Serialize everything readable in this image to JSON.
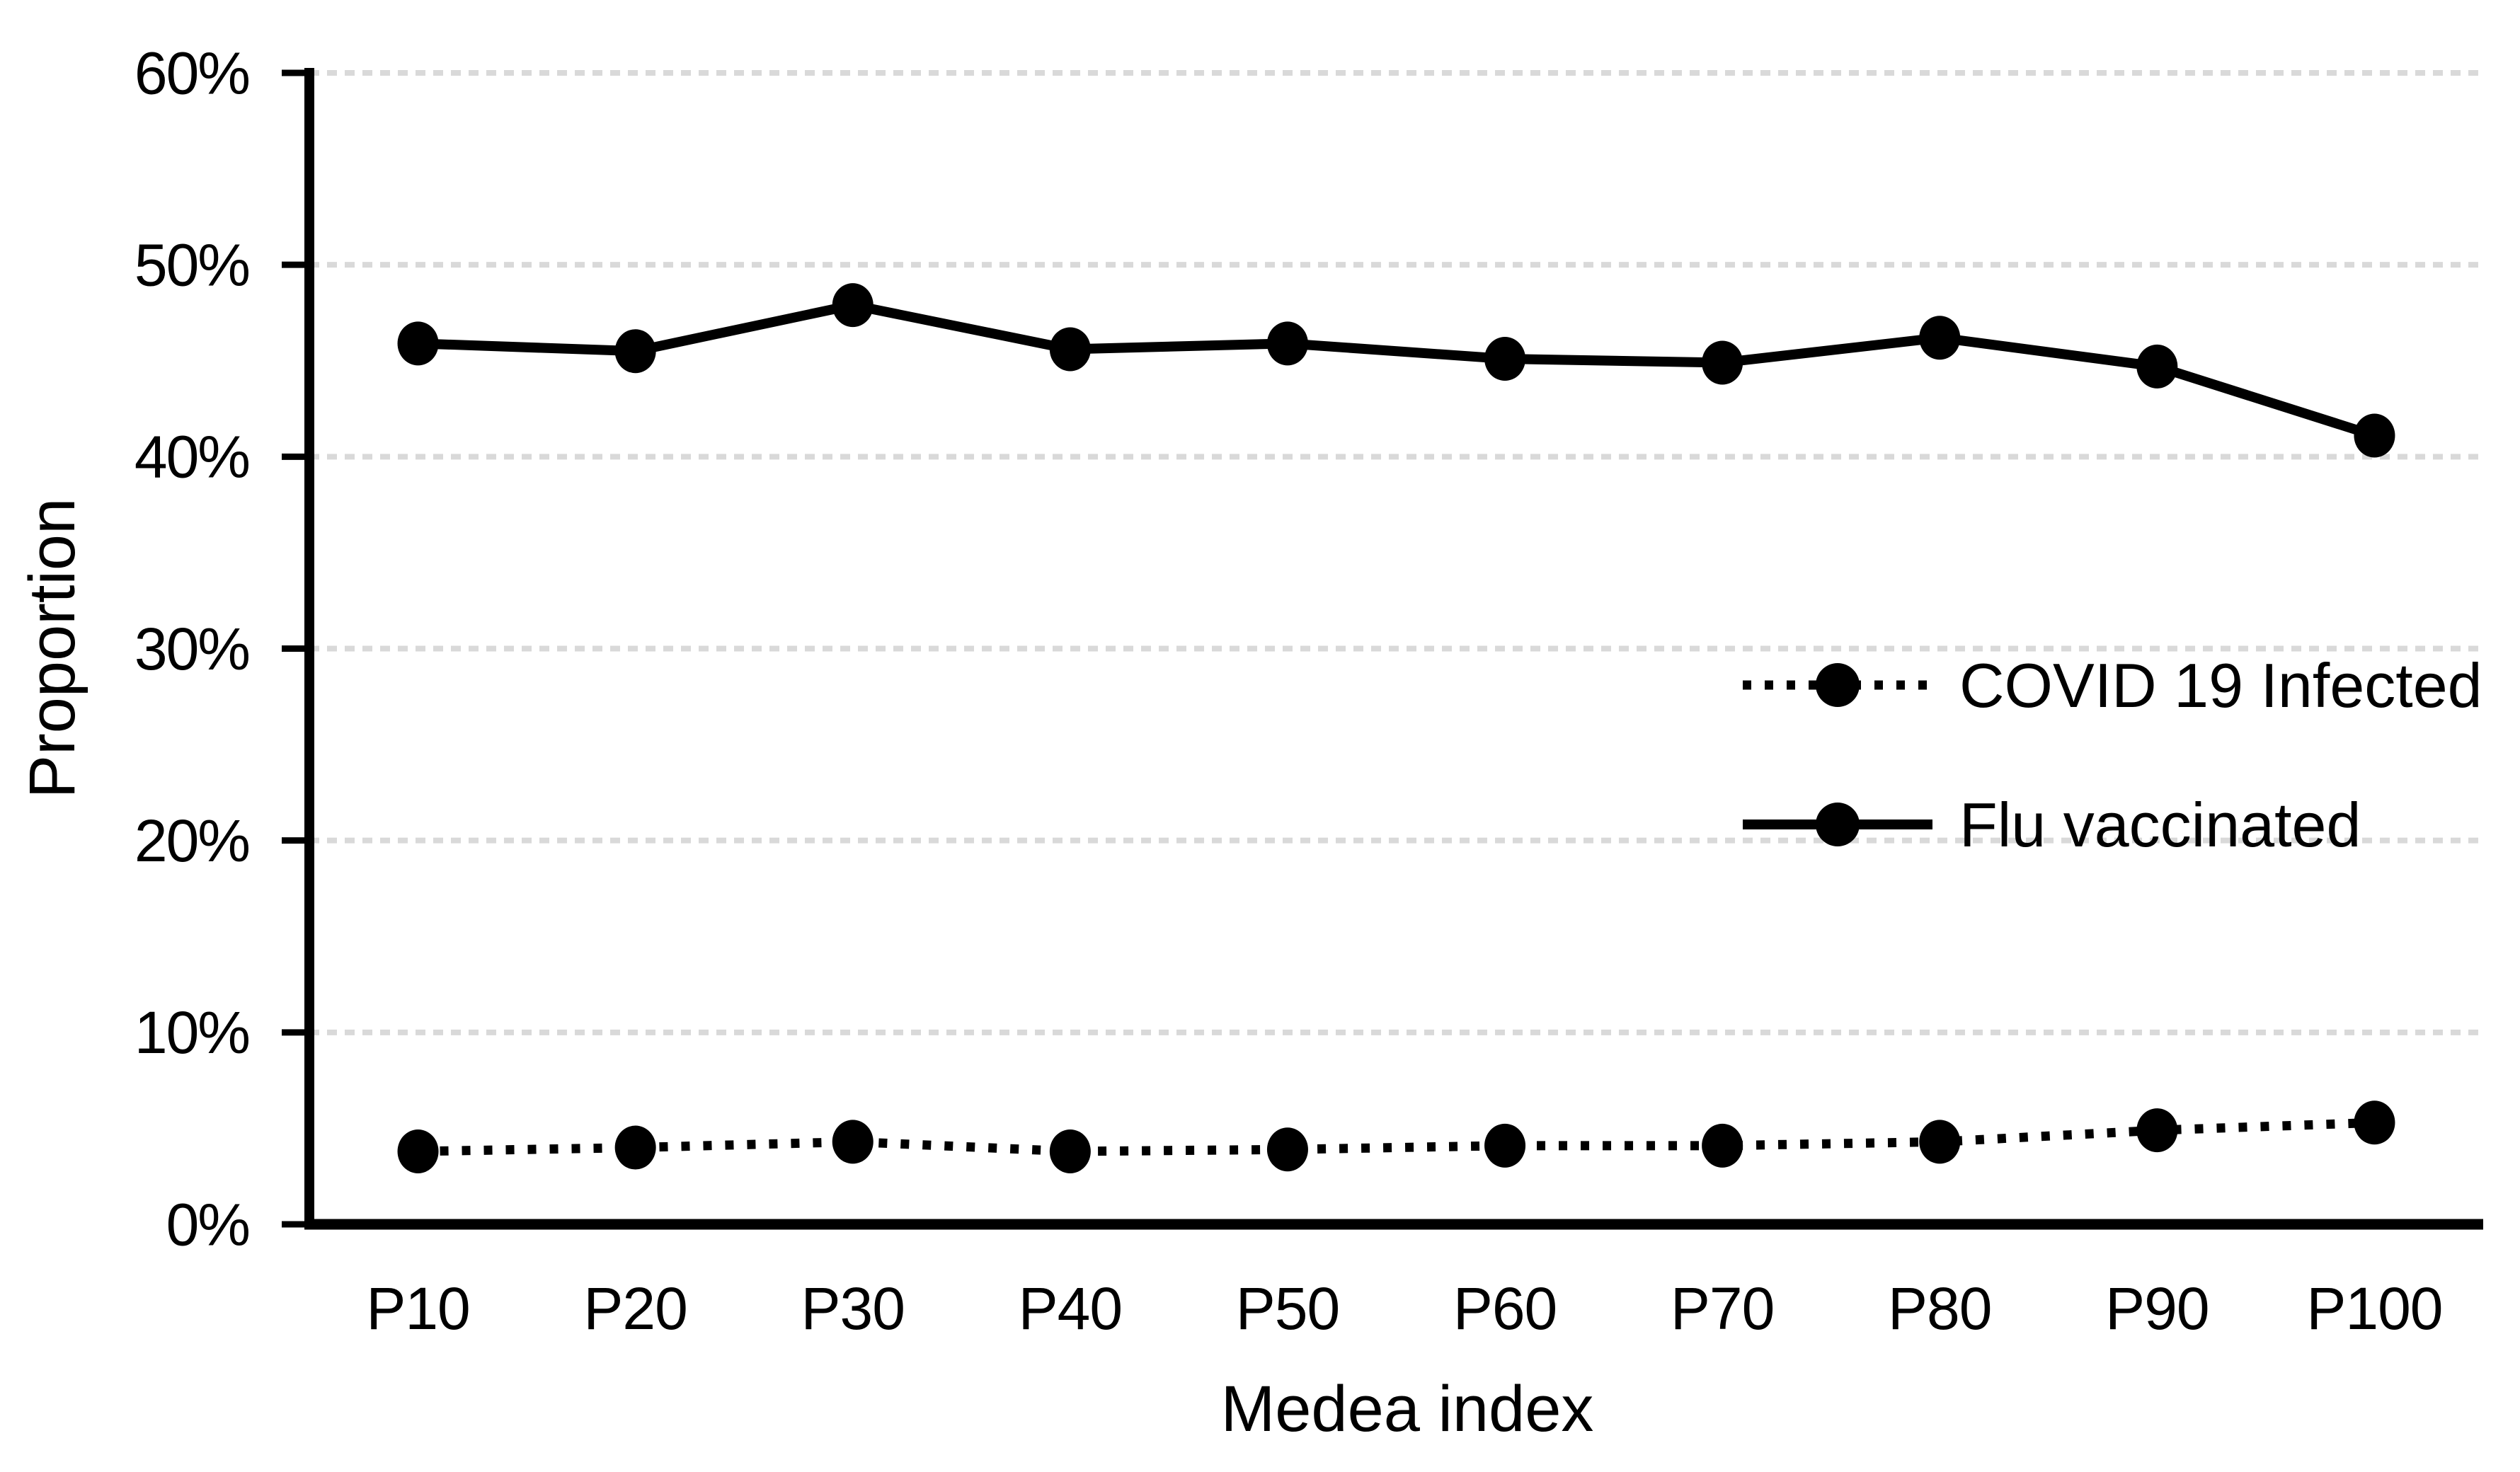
{
  "chart_data": {
    "type": "line",
    "title": "",
    "xlabel": "Medea index",
    "ylabel": "Proportion",
    "categories": [
      "P10",
      "P20",
      "P30",
      "P40",
      "P50",
      "P60",
      "P70",
      "P80",
      "P90",
      "P100"
    ],
    "series": [
      {
        "name": "COVID 19 Infected",
        "style": "dotted",
        "values": [
          3.8,
          4.0,
          4.3,
          3.8,
          3.9,
          4.1,
          4.1,
          4.3,
          4.9,
          5.3
        ]
      },
      {
        "name": "Flu vaccinated",
        "style": "solid",
        "values": [
          45.9,
          45.5,
          47.9,
          45.6,
          45.9,
          45.1,
          44.9,
          46.2,
          44.7,
          41.1
        ]
      }
    ],
    "ylim": [
      0,
      60
    ],
    "ytick_step": 10,
    "ytick_labels": [
      "0%",
      "10%",
      "20%",
      "30%",
      "40%",
      "50%",
      "60%"
    ],
    "grid": "horizontal-dashed",
    "legend_position": "middle-right"
  },
  "colors": {
    "series": "#000000",
    "gridline": "#d9d9d9",
    "text": "#000000",
    "background": "#ffffff"
  }
}
